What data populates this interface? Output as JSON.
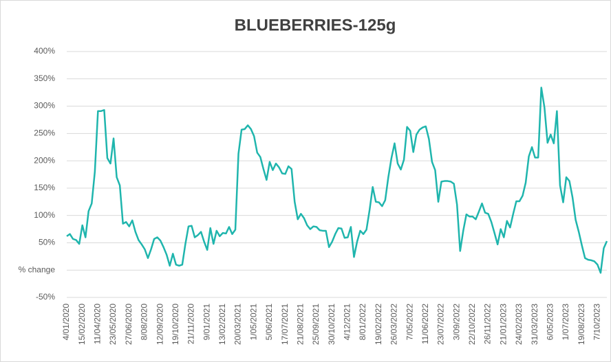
{
  "chart_data": {
    "type": "line",
    "title": "BLUEBERRIES-125g",
    "categories": [
      "4/01/2020",
      null,
      null,
      null,
      null,
      "15/02/2020",
      null,
      null,
      null,
      null,
      "11/04/2020",
      null,
      null,
      null,
      null,
      "23/05/2020",
      null,
      null,
      null,
      null,
      "27/06/2020",
      null,
      null,
      null,
      null,
      "8/08/2020",
      null,
      null,
      null,
      null,
      "12/09/2020",
      null,
      null,
      null,
      null,
      "19/10/2020",
      null,
      null,
      null,
      null,
      "21/11/2020",
      null,
      null,
      null,
      null,
      "9/01/2021",
      null,
      null,
      null,
      null,
      "13/02/2021",
      null,
      null,
      null,
      null,
      "20/03/2021",
      null,
      null,
      null,
      null,
      "1/05/2021",
      null,
      null,
      null,
      null,
      "5/06/2021",
      null,
      null,
      null,
      null,
      "17/07/2021",
      null,
      null,
      null,
      null,
      "21/08/2021",
      null,
      null,
      null,
      null,
      "25/09/2021",
      null,
      null,
      null,
      null,
      "30/10/2021",
      null,
      null,
      null,
      null,
      "4/12/2021",
      null,
      null,
      null,
      null,
      "8/01/2022",
      null,
      null,
      null,
      null,
      "19/02/2022",
      null,
      null,
      null,
      null,
      "26/03/2022",
      null,
      null,
      null,
      null,
      "7/05/2022",
      null,
      null,
      null,
      null,
      "11/06/2022",
      null,
      null,
      null,
      null,
      "23/07/2022",
      null,
      null,
      null,
      null,
      "3/09/2022",
      null,
      null,
      null,
      null,
      "22/10/2022",
      null,
      null,
      null,
      null,
      "26/11/2022",
      null,
      null,
      null,
      null,
      "21/01/2023",
      null,
      null,
      null,
      null,
      "24/02/2023",
      null,
      null,
      null,
      null,
      "31/03/2023",
      null,
      null,
      null,
      null,
      "6/05/2023",
      null,
      null,
      null,
      null,
      "1/07/2023",
      null,
      null,
      null,
      null,
      "19/08/2023",
      null,
      null,
      null,
      null,
      "7/10/2023",
      null,
      null,
      null
    ],
    "series": [
      {
        "color": "#1fb5ad",
        "values": [
          62,
          66,
          57,
          55,
          48,
          82,
          60,
          108,
          122,
          180,
          291,
          291,
          293,
          205,
          195,
          241,
          170,
          155,
          85,
          88,
          80,
          91,
          70,
          55,
          47,
          38,
          22,
          38,
          57,
          60,
          54,
          42,
          28,
          8,
          30,
          10,
          8,
          10,
          48,
          80,
          81,
          60,
          64,
          70,
          52,
          37,
          77,
          48,
          72,
          62,
          68,
          67,
          79,
          66,
          74,
          213,
          257,
          258,
          265,
          258,
          245,
          215,
          207,
          185,
          165,
          198,
          183,
          195,
          188,
          177,
          176,
          190,
          185,
          125,
          93,
          103,
          95,
          82,
          75,
          80,
          79,
          73,
          72,
          72,
          42,
          52,
          66,
          77,
          76,
          59,
          60,
          79,
          24,
          52,
          72,
          66,
          74,
          110,
          152,
          125,
          124,
          117,
          128,
          170,
          205,
          232,
          195,
          184,
          202,
          262,
          255,
          216,
          248,
          257,
          261,
          263,
          240,
          198,
          183,
          125,
          162,
          163,
          163,
          162,
          158,
          120,
          35,
          72,
          102,
          98,
          98,
          93,
          107,
          122,
          105,
          103,
          88,
          68,
          47,
          75,
          60,
          90,
          78,
          103,
          126,
          126,
          136,
          160,
          208,
          225,
          206,
          206,
          334,
          298,
          233,
          248,
          232,
          291,
          155,
          124,
          170,
          163,
          133,
          92,
          70,
          45,
          22,
          19,
          18,
          16,
          10,
          -5,
          40,
          53
        ]
      }
    ],
    "ylim": [
      -50,
      400
    ],
    "yticks": [
      {
        "value": -50,
        "label": "-50%"
      },
      {
        "value": 0,
        "label": "% change"
      },
      {
        "value": 50,
        "label": "50%"
      },
      {
        "value": 100,
        "label": "100%"
      },
      {
        "value": 150,
        "label": "150%"
      },
      {
        "value": 200,
        "label": "200%"
      },
      {
        "value": 250,
        "label": "250%"
      },
      {
        "value": 300,
        "label": "300%"
      },
      {
        "value": 350,
        "label": "350%"
      },
      {
        "value": 400,
        "label": "400%"
      }
    ],
    "grid": true
  }
}
